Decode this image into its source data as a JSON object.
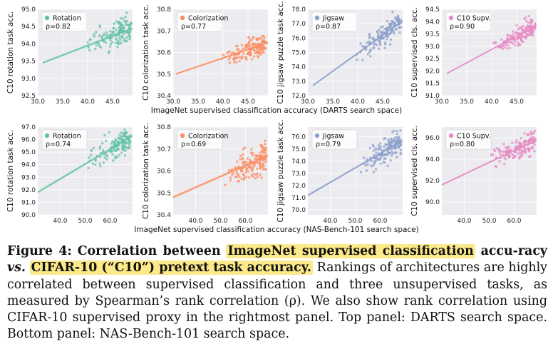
{
  "figure": {
    "rows": [
      {
        "xlabel": "ImageNet supervised classification accuracy (DARTS search space)",
        "xlim": [
          30,
          49
        ],
        "xticks": [
          "30.0",
          "35.0",
          "40.0",
          "45.0"
        ],
        "panels": [
          {
            "ylabel": "C10 rotation task acc.",
            "legend": "Rotation",
            "rho": "ρ=0.82",
            "color": "#66c2a5",
            "yticks": [
              "92.5",
              "93.0",
              "93.5",
              "94.0",
              "94.5",
              "95.0"
            ],
            "ylim": [
              92.5,
              95.0
            ],
            "line": [
              [
                31,
                93.45
              ],
              [
                49,
                94.45
              ]
            ],
            "spread": 0.35
          },
          {
            "ylabel": "C10 colorization task acc.",
            "legend": "Colorization",
            "rho": "ρ=0.77",
            "color": "#fc8d62",
            "yticks": [
              "30.4",
              "30.5",
              "30.6",
              "30.7",
              "30.8"
            ],
            "ylim": [
              30.4,
              30.8
            ],
            "line": [
              [
                30.5,
                30.5
              ],
              [
                49,
                30.645
              ]
            ],
            "spread": 0.04
          },
          {
            "ylabel": "C10 jigsaw puzzle task acc.",
            "legend": "Jigsaw",
            "rho": "ρ=0.87",
            "color": "#8da0cb",
            "yticks": [
              "72.0",
              "73.0",
              "74.0",
              "75.0",
              "76.0",
              "77.0",
              "78.0"
            ],
            "ylim": [
              72.0,
              78.0
            ],
            "line": [
              [
                31,
                72.7
              ],
              [
                49,
                77.2
              ]
            ],
            "spread": 0.7
          },
          {
            "ylabel": "C10 supervised cls. acc.",
            "legend": "C10 Supv.",
            "rho": "ρ=0.90",
            "color": "#e78ac3",
            "yticks": [
              "91.0",
              "91.5",
              "92.0",
              "92.5",
              "93.0",
              "93.5",
              "94.0",
              "94.5"
            ],
            "ylim": [
              91.0,
              94.5
            ],
            "line": [
              [
                31,
                91.9
              ],
              [
                49,
                93.85
              ]
            ],
            "spread": 0.35
          }
        ]
      },
      {
        "xlabel": "ImageNet supervised classification accuracy (NAS-Bench-101 search space)",
        "xlim": [
          31,
          69
        ],
        "xticks": [
          "40.0",
          "50.0",
          "60.0"
        ],
        "panels": [
          {
            "ylabel": "C10 rotation task acc.",
            "legend": "Rotation",
            "rho": "ρ=0.74",
            "color": "#66c2a5",
            "yticks": [
              "90.0",
              "91.0",
              "92.0",
              "93.0",
              "94.0",
              "95.0",
              "96.0",
              "97.0"
            ],
            "ylim": [
              90.0,
              97.0
            ],
            "line": [
              [
                31,
                91.8
              ],
              [
                69,
                96.3
              ]
            ],
            "spread": 1.0
          },
          {
            "ylabel": "C10 colorization task acc.",
            "legend": "Colorization",
            "rho": "ρ=0.69",
            "color": "#fc8d62",
            "yticks": [
              "30.4",
              "30.5",
              "30.6",
              "30.7",
              "30.8"
            ],
            "ylim": [
              30.4,
              30.8
            ],
            "line": [
              [
                31,
                30.48
              ],
              [
                69,
                30.67
              ]
            ],
            "spread": 0.06
          },
          {
            "ylabel": "C10 jigsaw puzzle task acc.",
            "legend": "Jigsaw",
            "rho": "ρ=0.79",
            "color": "#8da0cb",
            "yticks": [
              "70.0",
              "71.0",
              "72.0",
              "73.0",
              "74.0",
              "75.0",
              "76.0"
            ],
            "ylim": [
              69.6,
              76.8
            ],
            "line": [
              [
                31,
                71.2
              ],
              [
                69,
                75.7
              ]
            ],
            "spread": 0.9
          },
          {
            "ylabel": "C10 supervised cls. acc.",
            "legend": "C10 Supv.",
            "rho": "ρ=0.80",
            "color": "#e78ac3",
            "yticks": [
              "90.0",
              "92.0",
              "94.0",
              "96.0"
            ],
            "ylim": [
              88.8,
              97.0
            ],
            "line": [
              [
                31,
                91.6
              ],
              [
                69,
                95.8
              ]
            ],
            "spread": 0.9
          }
        ]
      }
    ]
  },
  "caption": {
    "figure_label": "Figure 4:",
    "title_part1": "Correlation between",
    "title_highlight1": "ImageNet supervised classification",
    "title_part2a": "accu-",
    "title_part2b": "racy",
    "title_vs": "vs.",
    "title_highlight2": "CIFAR-10 (“C10”) pretext task accuracy.",
    "body": "Rankings of architectures are highly correlated between supervised classification and three unsupervised tasks, as measured by Spearman’s rank correlation (ρ). We also show rank correlation using CIFAR-10 supervised proxy in the rightmost panel. Top panel: DARTS search space. Bottom panel: NAS-Bench-101 search space."
  }
}
